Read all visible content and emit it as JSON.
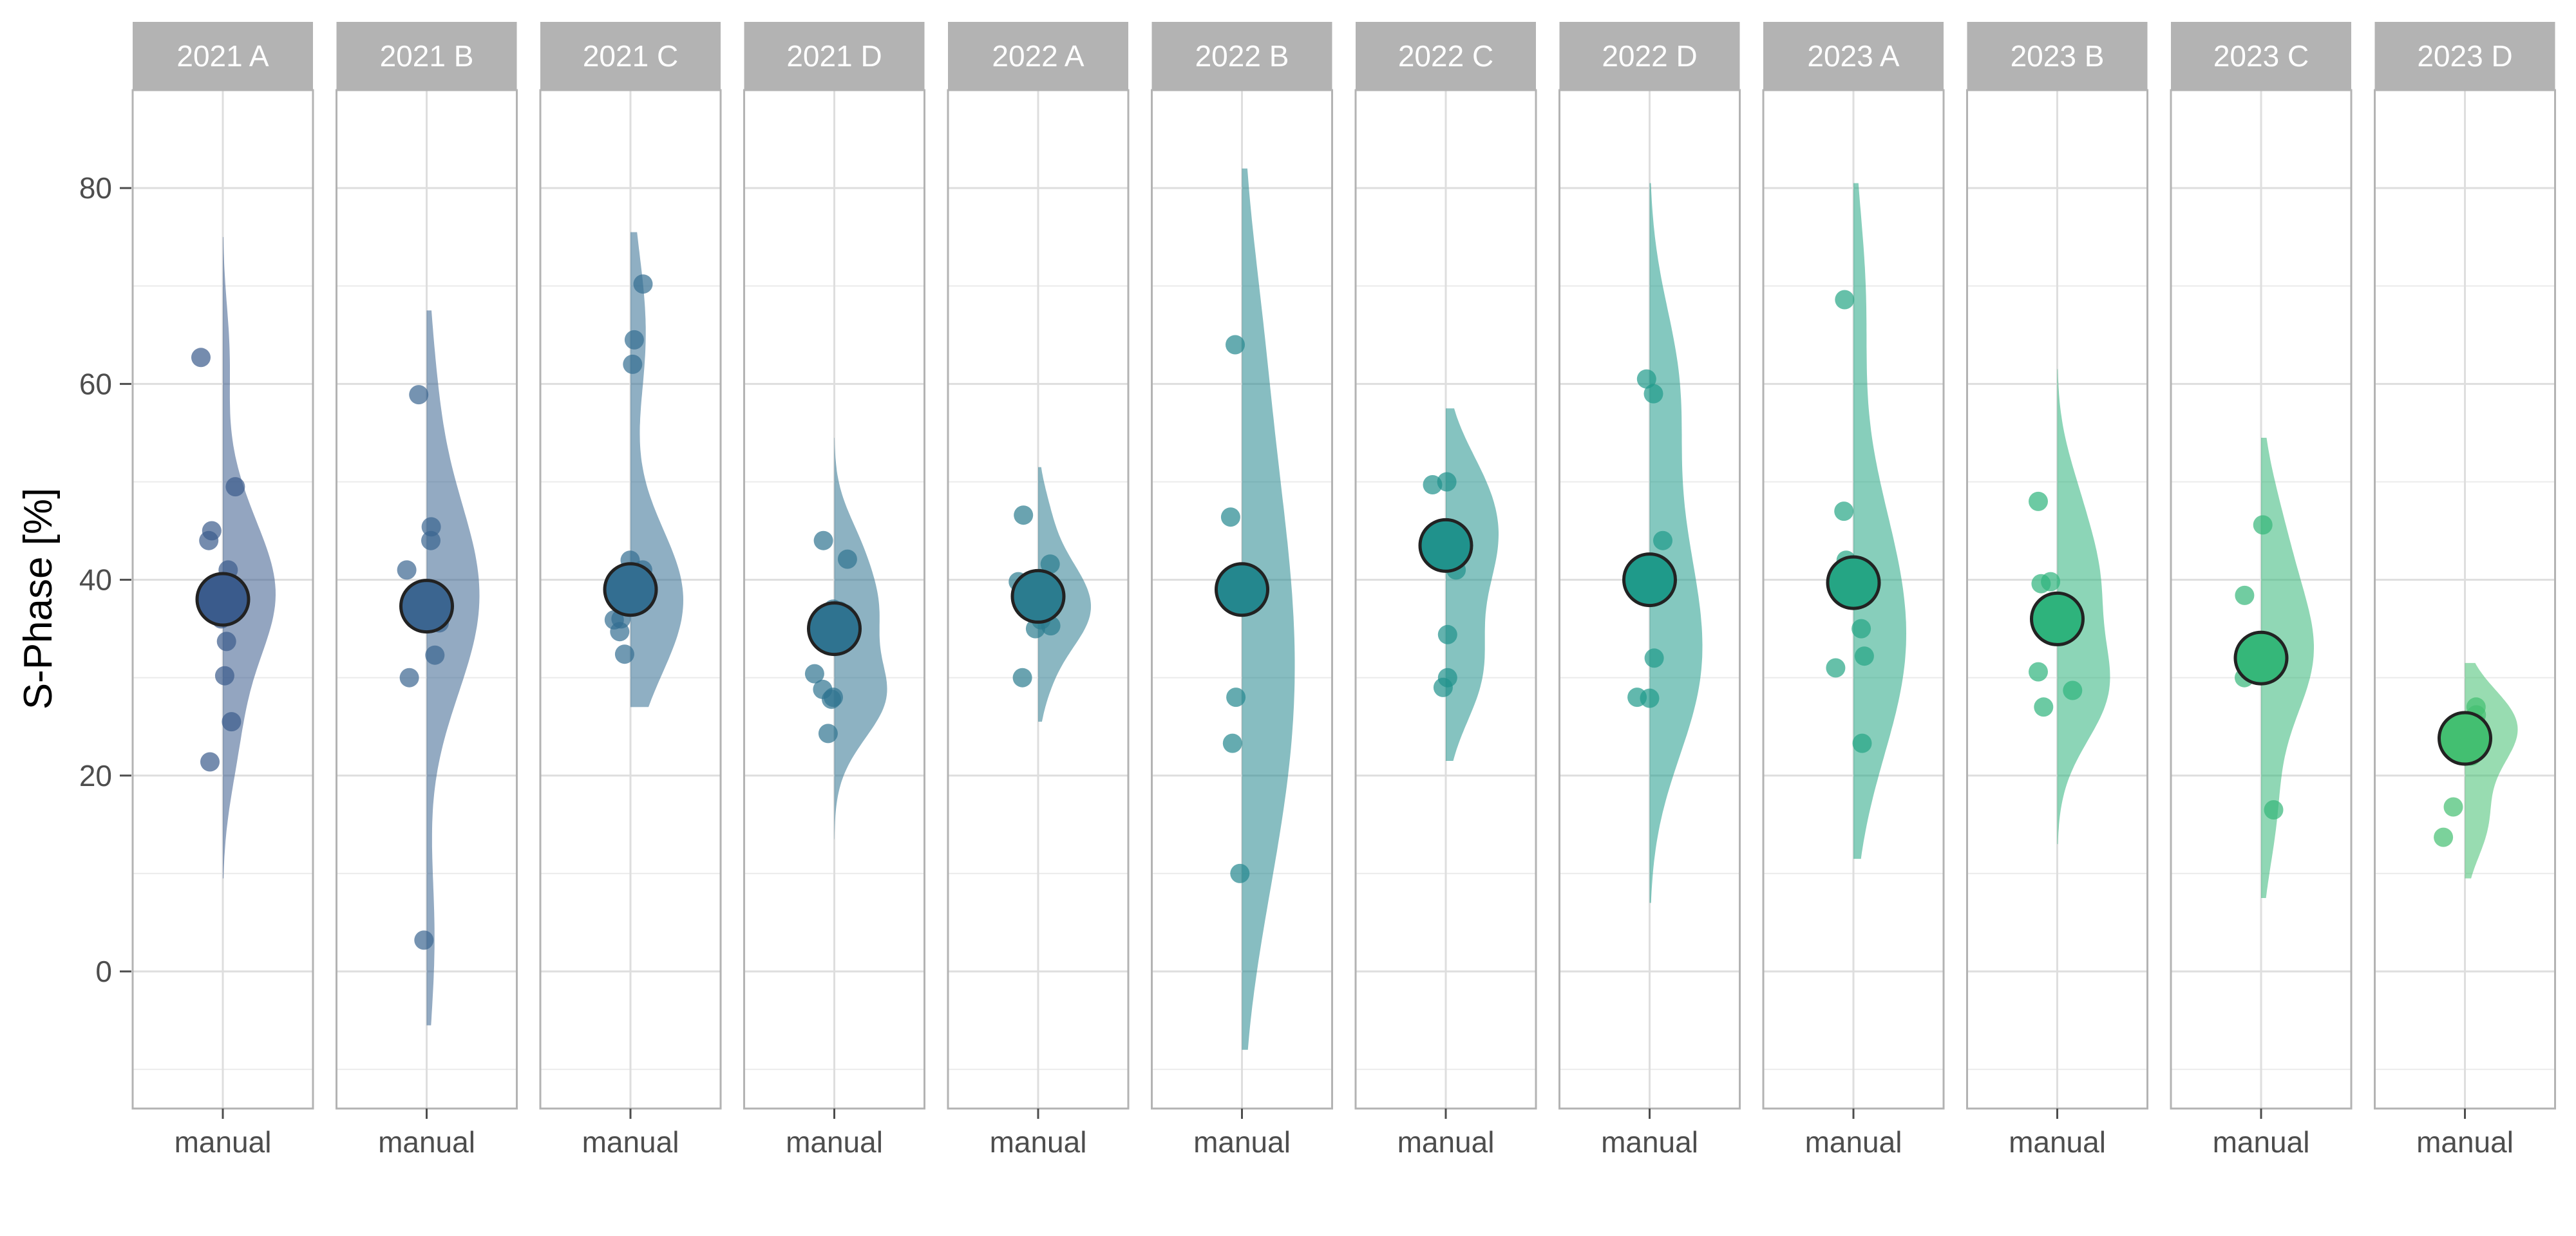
{
  "chart_data": {
    "type": "scatter",
    "subtype": "raincloud (jittered points + half violin + mean point), faceted",
    "ylabel": "S-Phase [%]",
    "xlabel": "",
    "ylim": [
      -14,
      90
    ],
    "yticks": [
      0,
      20,
      40,
      60,
      80
    ],
    "grid": true,
    "x_category": "manual",
    "panels": [
      {
        "label": "2021 A",
        "color": "#3a5b8c",
        "mean": 38,
        "points": [
          62.7,
          49.5,
          45.0,
          44.0,
          41.0,
          39.0,
          38.5,
          38.0,
          37.5,
          36.0,
          33.7,
          30.2,
          25.5,
          21.4
        ],
        "violin_range": [
          9.5,
          75
        ]
      },
      {
        "label": "2021 B",
        "color": "#3b6590",
        "mean": 37.3,
        "points": [
          58.9,
          45.4,
          44.0,
          41.0,
          38.5,
          38.0,
          35.6,
          32.3,
          30.0,
          3.2
        ],
        "violin_range": [
          -5.5,
          67.5
        ]
      },
      {
        "label": "2021 C",
        "color": "#336e91",
        "mean": 39,
        "points": [
          70.2,
          64.5,
          62.0,
          42.0,
          41.0,
          40.0,
          39.5,
          38.5,
          38.0,
          36.0,
          35.9,
          34.7,
          32.4
        ],
        "violin_range": [
          27,
          75.5
        ]
      },
      {
        "label": "2021 D",
        "color": "#2f7390",
        "mean": 35,
        "points": [
          44.0,
          42.1,
          37.0,
          36.8,
          36.5,
          30.4,
          28.8,
          28.0,
          27.8,
          24.3
        ],
        "violin_range": [
          13.5,
          54.5
        ]
      },
      {
        "label": "2022 A",
        "color": "#2b7c8f",
        "mean": 38.3,
        "points": [
          46.6,
          41.6,
          39.8,
          39.5,
          37.0,
          35.9,
          35.3,
          35.0,
          30.0
        ],
        "violin_range": [
          25.5,
          51.5
        ]
      },
      {
        "label": "2022 B",
        "color": "#24878e",
        "mean": 39,
        "points": [
          64.0,
          46.4,
          39.0,
          28.0,
          23.3,
          10.0
        ],
        "violin_range": [
          -8,
          82
        ]
      },
      {
        "label": "2022 C",
        "color": "#20928c",
        "mean": 43.5,
        "points": [
          50.0,
          49.7,
          44.0,
          43.5,
          41.0,
          34.4,
          30.0,
          29.0
        ],
        "violin_range": [
          21.5,
          57.5
        ]
      },
      {
        "label": "2022 D",
        "color": "#1f9a8a",
        "mean": 40,
        "points": [
          60.5,
          59.0,
          44.0,
          39.5,
          32.0,
          28.0,
          27.9
        ],
        "violin_range": [
          7,
          80.5
        ]
      },
      {
        "label": "2023 A",
        "color": "#25a584",
        "mean": 39.7,
        "points": [
          68.6,
          47.0,
          42.0,
          35.0,
          32.2,
          31.0,
          23.3
        ],
        "violin_range": [
          11.5,
          80.5
        ]
      },
      {
        "label": "2023 B",
        "color": "#2eb37c",
        "mean": 36,
        "points": [
          48.0,
          39.8,
          39.6,
          30.6,
          28.7,
          27.0
        ],
        "violin_range": [
          13,
          61.5
        ]
      },
      {
        "label": "2023 C",
        "color": "#35b779",
        "mean": 32,
        "points": [
          45.6,
          38.4,
          33.0,
          31.0,
          30.0,
          16.5
        ],
        "violin_range": [
          7.5,
          54.5
        ]
      },
      {
        "label": "2023 D",
        "color": "#43bf71",
        "mean": 23.8,
        "points": [
          27.0,
          26.2,
          25.4,
          23.0,
          22.0,
          16.8,
          13.7
        ],
        "violin_range": [
          9.5,
          31.5
        ]
      }
    ]
  }
}
